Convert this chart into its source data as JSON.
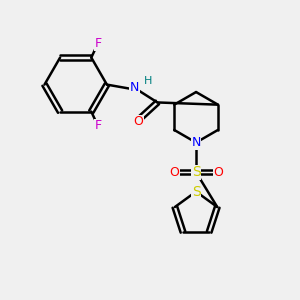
{
  "background_color": "#f0f0f0",
  "atom_colors": {
    "C": "#000000",
    "N": "#0000ff",
    "O": "#ff0000",
    "F": "#cc00cc",
    "S_sulfonyl": "#cccc00",
    "S_thio": "#cccc00",
    "H": "#008080"
  }
}
